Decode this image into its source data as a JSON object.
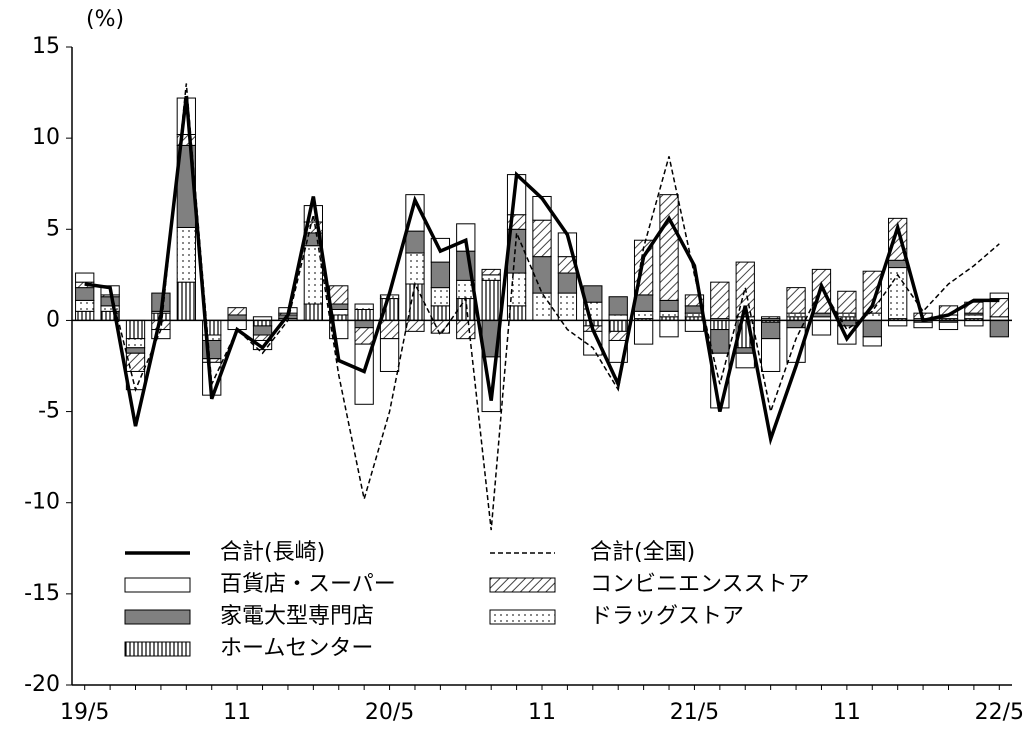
{
  "chart_data": {
    "type": "stacked-bar-line",
    "y_label": "(%)",
    "categories": [
      "19/5",
      null,
      null,
      null,
      null,
      null,
      "11",
      null,
      null,
      null,
      null,
      null,
      "20/5",
      null,
      null,
      null,
      null,
      null,
      "11",
      null,
      null,
      null,
      null,
      null,
      "21/5",
      null,
      null,
      null,
      null,
      null,
      "11",
      null,
      null,
      null,
      null,
      null,
      "22/5"
    ],
    "ylim": [
      -20,
      15
    ],
    "yticks": [
      -20,
      -15,
      -10,
      -5,
      0,
      5,
      10,
      15
    ],
    "series": [
      {
        "name": "合計(長崎)",
        "kind": "line",
        "color": "#000000",
        "dash": "solid",
        "values": [
          2.0,
          1.8,
          -5.8,
          0.3,
          12.3,
          -4.3,
          -0.5,
          -1.5,
          0.3,
          6.8,
          -2.2,
          -2.8,
          1.5,
          6.6,
          3.8,
          4.4,
          -4.4,
          8.0,
          6.7,
          4.7,
          -0.5,
          -3.5,
          3.5,
          5.6,
          3.0,
          -5.0,
          0.8,
          -6.5,
          -2.5,
          1.9,
          -1.0,
          0.8,
          5.1,
          0.0,
          0.3,
          1.1,
          1.1
        ]
      },
      {
        "name": "合計(全国)",
        "kind": "line",
        "color": "#000000",
        "dash": "dashed",
        "values": [
          2.0,
          1.8,
          -3.8,
          -0.5,
          13.0,
          -3.5,
          -0.5,
          -1.8,
          0.0,
          5.8,
          -3.0,
          -9.8,
          -5.0,
          2.0,
          -0.8,
          1.2,
          -11.5,
          4.8,
          1.5,
          -0.5,
          -1.5,
          -3.8,
          4.0,
          9.0,
          2.5,
          -3.5,
          1.8,
          -5.0,
          -1.0,
          1.8,
          -0.5,
          0.5,
          2.5,
          0.5,
          2.0,
          3.0,
          4.2
        ]
      },
      {
        "name": "百貨店・スーパー",
        "kind": "bar",
        "color": "#ffffff",
        "pattern": "none",
        "values": [
          0.5,
          0.5,
          -1.0,
          -0.5,
          2.0,
          -1.8,
          -0.5,
          -0.5,
          0.3,
          0.9,
          -1.0,
          -3.3,
          -1.8,
          2.0,
          1.3,
          1.5,
          -3.0,
          2.2,
          1.3,
          1.3,
          -1.3,
          -1.2,
          -1.3,
          -0.9,
          -0.6,
          -3.0,
          -0.8,
          -1.8,
          -1.9,
          -0.8,
          -1.0,
          -0.5,
          -0.3,
          -0.3,
          -0.4,
          -0.3,
          0.3
        ]
      },
      {
        "name": "コンビニエンスストア",
        "kind": "bar",
        "color": "#ffffff",
        "pattern": "diagonal",
        "values": [
          0.3,
          0.1,
          -1.0,
          -0.5,
          0.6,
          -0.2,
          0.4,
          -0.3,
          0.1,
          0.6,
          1.0,
          -0.9,
          -1.0,
          -0.6,
          -0.7,
          -1.0,
          0.3,
          0.8,
          2.0,
          0.9,
          -0.3,
          -0.5,
          3.0,
          5.8,
          0.6,
          2.0,
          3.0,
          0.1,
          1.4,
          2.4,
          1.2,
          2.3,
          2.3,
          0.3,
          0.5,
          0.6,
          1.0
        ]
      },
      {
        "name": "家電大型専門店",
        "kind": "bar",
        "color": "#808080",
        "pattern": "none",
        "values": [
          0.7,
          0.5,
          -0.3,
          1.0,
          4.5,
          -1.0,
          0.3,
          -0.5,
          0.2,
          0.7,
          0.3,
          -0.4,
          0.0,
          1.2,
          1.4,
          1.6,
          -2.0,
          2.4,
          2.0,
          1.1,
          0.9,
          1.0,
          0.9,
          0.6,
          0.4,
          -1.3,
          -0.3,
          -0.9,
          -0.4,
          0.2,
          -0.3,
          -0.9,
          0.4,
          -0.1,
          -0.1,
          0.1,
          -0.9
        ]
      },
      {
        "name": "ドラッグストア",
        "kind": "bar",
        "color": "#ffffff",
        "pattern": "dots",
        "values": [
          0.6,
          0.3,
          -0.5,
          0.1,
          3.0,
          -0.3,
          0.0,
          0.2,
          0.1,
          3.2,
          0.3,
          0.3,
          0.2,
          1.7,
          1.0,
          1.0,
          0.3,
          1.8,
          1.5,
          1.5,
          1.0,
          0.3,
          0.4,
          0.3,
          0.2,
          0.1,
          0.2,
          0.1,
          0.2,
          0.2,
          0.2,
          0.4,
          2.8,
          0.1,
          0.2,
          0.2,
          0.2
        ]
      },
      {
        "name": "ホームセンター",
        "kind": "bar",
        "color": "#ffffff",
        "pattern": "vertical",
        "values": [
          0.5,
          0.5,
          -1.0,
          0.4,
          2.1,
          -0.8,
          0.0,
          -0.3,
          0.0,
          0.9,
          0.3,
          0.6,
          1.2,
          2.0,
          0.8,
          1.2,
          2.2,
          0.8,
          0.0,
          0.0,
          -0.3,
          -0.6,
          0.1,
          0.2,
          0.2,
          -0.5,
          -1.5,
          -0.1,
          0.2,
          0.0,
          0.2,
          0.0,
          0.1,
          0.0,
          0.1,
          0.1,
          0.0
        ]
      }
    ]
  }
}
